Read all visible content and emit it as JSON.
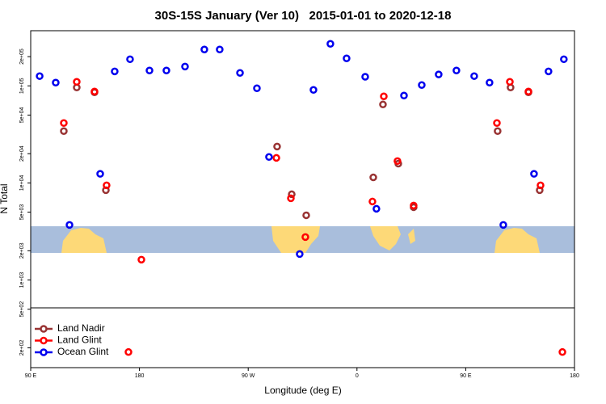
{
  "chart_data": {
    "type": "scatter",
    "title": "30S-15S January (Ver 10)   2015-01-01 to 2020-12-18",
    "x_label": "Longitude (deg E)",
    "y_label": "N Total",
    "log_y": true,
    "legend": "bottom-left",
    "xlim": [
      90,
      540
    ],
    "xticks": [
      {
        "value": 90,
        "label": "90 E"
      },
      180,
      {
        "value": 270,
        "label": "90 W"
      },
      {
        "value": 360,
        "label": "0"
      },
      {
        "value": 450,
        "label": "90 E"
      },
      {
        "value": 540,
        "label": "180"
      }
    ],
    "ylim": [
      125,
      370000
    ],
    "yticks": [
      {
        "value": 200,
        "label": "2e+02"
      },
      {
        "value": 500,
        "label": "5e+02"
      },
      {
        "value": 1000,
        "label": "1e+03"
      },
      {
        "value": 2000,
        "label": "2e+03"
      },
      {
        "value": 5000,
        "label": "5e+03"
      },
      {
        "value": 10000,
        "label": "1e+04"
      },
      {
        "value": 20000,
        "label": "2e+04"
      },
      {
        "value": 50000,
        "label": "5e+04"
      },
      {
        "value": 100000,
        "label": "1e+05"
      },
      {
        "value": 200000,
        "label": "2e+05"
      }
    ],
    "series": [
      {
        "name": "Land Nadir",
        "color": "#993333",
        "x": [
          117.4,
          128.1,
          142.8,
          152.2,
          293.9,
          306.0,
          318.0,
          373.5,
          381.5,
          394.2,
          406.9,
          476.4,
          487.1,
          501.9,
          511.2
        ],
        "values": [
          34200,
          96200,
          85800,
          8410,
          23700,
          7640,
          4640,
          11400,
          64300,
          15800,
          5620,
          34200,
          96200,
          85800,
          8410
        ]
      },
      {
        "name": "Land Glint",
        "color": "#ff0000",
        "x": [
          117.4,
          128.1,
          142.8,
          152.8,
          170.9,
          181.6,
          293.3,
          305.3,
          317.3,
          372.8,
          382.2,
          393.5,
          406.9,
          475.8,
          486.5,
          501.9,
          511.9,
          530.0
        ],
        "values": [
          41400,
          110000,
          87400,
          9440,
          181,
          1620,
          18100,
          6950,
          2770,
          6430,
          78000,
          16800,
          5850,
          41400,
          110000,
          87400,
          9440,
          181
        ]
      },
      {
        "name": "Ocean Glint",
        "color": "#0000ee",
        "x": [
          97.4,
          110.7,
          122.1,
          147.5,
          159.5,
          172.2,
          188.3,
          202.3,
          217.7,
          233.7,
          246.4,
          263.2,
          277.2,
          287.2,
          312.6,
          324.0,
          338.0,
          351.4,
          366.8,
          376.1,
          398.9,
          413.6,
          427.6,
          442.3,
          457.0,
          469.7,
          481.1,
          506.5,
          518.5,
          531.2
        ],
        "values": [
          126000,
          108000,
          3690,
          12400,
          141000,
          188000,
          144000,
          144000,
          158000,
          237000,
          237000,
          136000,
          94400,
          18500,
          1850,
          90900,
          271000,
          192000,
          124000,
          5410,
          79400,
          102000,
          131000,
          144000,
          126000,
          108000,
          3690,
          12400,
          141000,
          188000
        ]
      }
    ]
  }
}
